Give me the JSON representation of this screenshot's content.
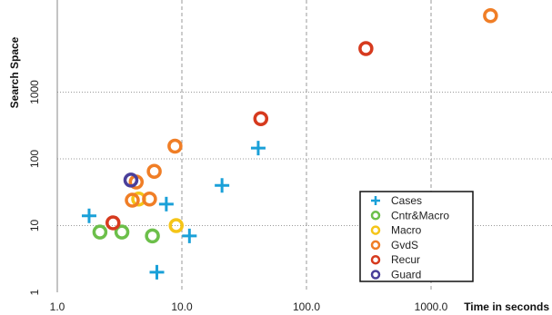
{
  "chart_data": {
    "type": "scatter",
    "title": "",
    "xlabel": "Time in seconds",
    "ylabel": "Search Space",
    "x_scale": "log",
    "y_scale": "log",
    "xlim": [
      1,
      10000
    ],
    "ylim": [
      1,
      20000
    ],
    "x_ticks": [
      {
        "value": 1,
        "label": "1.0"
      },
      {
        "value": 10,
        "label": "10.0"
      },
      {
        "value": 100,
        "label": "100.0"
      },
      {
        "value": 1000,
        "label": "1000.0"
      }
    ],
    "y_ticks": [
      {
        "value": 1,
        "label": "1"
      },
      {
        "value": 10,
        "label": "10"
      },
      {
        "value": 100,
        "label": "100"
      },
      {
        "value": 1000,
        "label": "1000"
      }
    ],
    "grid": {
      "x": "dashed",
      "y": "dotted"
    },
    "legend_position": "bottom-right",
    "series": [
      {
        "name": "Cases",
        "marker": "plus",
        "color": "#1aa0d8",
        "points": [
          [
            1.8,
            14
          ],
          [
            6.3,
            2
          ],
          [
            7.5,
            21
          ],
          [
            11.5,
            7
          ],
          [
            21,
            40
          ],
          [
            41,
            145
          ]
        ]
      },
      {
        "name": "Cntr&Macro",
        "marker": "circle",
        "color": "#6cbf4a",
        "points": [
          [
            2.2,
            8
          ],
          [
            3.3,
            8
          ],
          [
            5.8,
            7
          ]
        ]
      },
      {
        "name": "Macro",
        "marker": "circle",
        "color": "#f5c518",
        "points": [
          [
            4.5,
            25
          ],
          [
            9,
            10
          ]
        ]
      },
      {
        "name": "GvdS",
        "marker": "circle",
        "color": "#f07e26",
        "points": [
          [
            4.0,
            24
          ],
          [
            4.3,
            45
          ],
          [
            5.5,
            25
          ],
          [
            6.0,
            65
          ],
          [
            8.8,
            155
          ],
          [
            3000,
            14000
          ]
        ]
      },
      {
        "name": "Recur",
        "marker": "circle",
        "color": "#d63a1e",
        "points": [
          [
            2.8,
            11
          ],
          [
            43,
            400
          ],
          [
            300,
            4500
          ]
        ]
      },
      {
        "name": "Guard",
        "marker": "circle",
        "color": "#4a3f9a",
        "points": [
          [
            3.9,
            48
          ]
        ]
      }
    ]
  }
}
